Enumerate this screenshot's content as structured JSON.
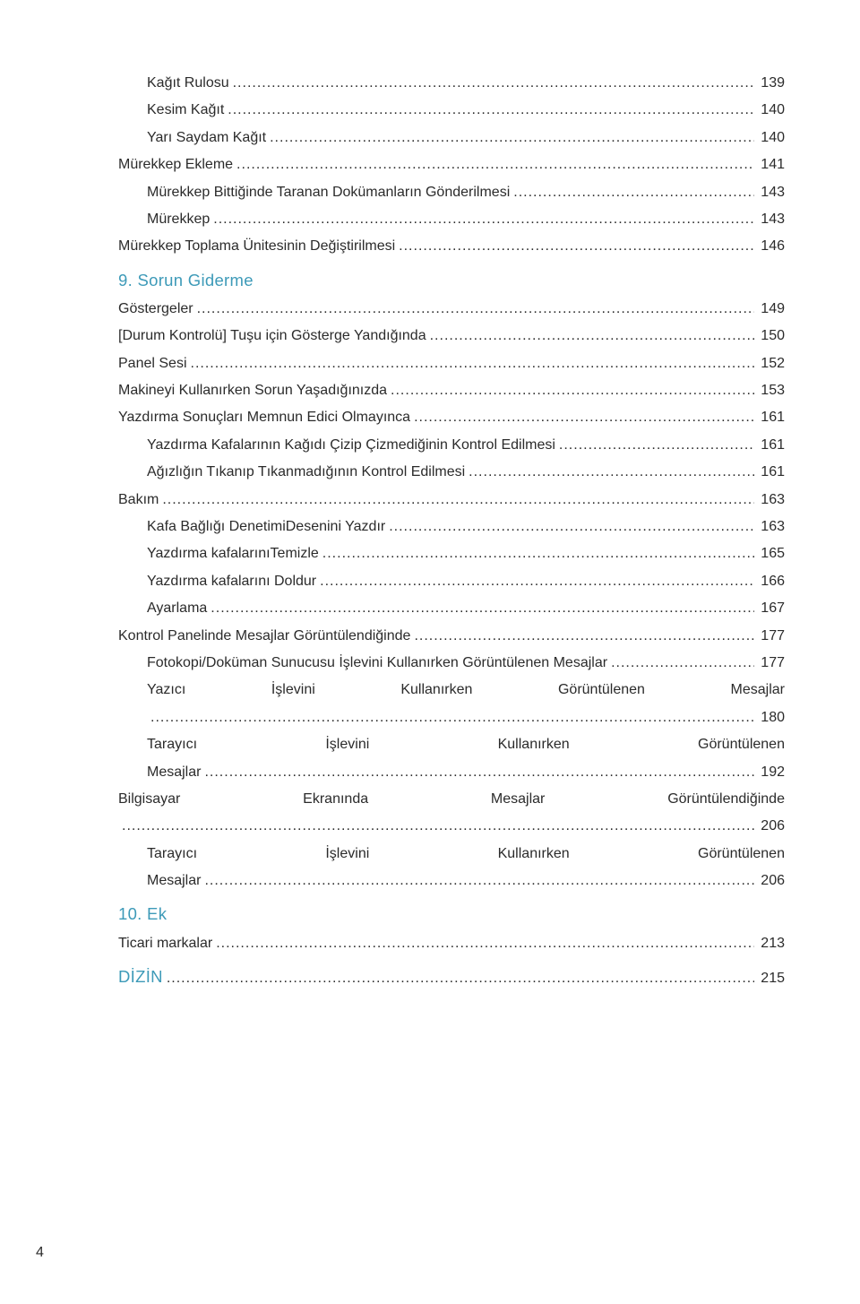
{
  "colors": {
    "text": "#2b2b2b",
    "heading": "#3d9ab8",
    "background": "#ffffff"
  },
  "typography": {
    "body_fontsize_pt": 12,
    "heading_fontsize_pt": 14,
    "font_family": "Segoe UI Light / Futura Light",
    "font_weight": "300"
  },
  "page_number": "4",
  "entries": [
    {
      "kind": "item",
      "indent": 2,
      "label": "Kağıt Rulosu",
      "page": "139"
    },
    {
      "kind": "item",
      "indent": 2,
      "label": "Kesim Kağıt",
      "page": "140"
    },
    {
      "kind": "item",
      "indent": 2,
      "label": "Yarı Saydam Kağıt",
      "page": "140"
    },
    {
      "kind": "item",
      "indent": 1,
      "label": "Mürekkep Ekleme",
      "page": "141"
    },
    {
      "kind": "item",
      "indent": 2,
      "label": "Mürekkep Bittiğinde Taranan Dokümanların Gönderilmesi",
      "page": "143"
    },
    {
      "kind": "item",
      "indent": 2,
      "label": "Mürekkep",
      "page": "143"
    },
    {
      "kind": "item",
      "indent": 1,
      "label": "Mürekkep Toplama Ünitesinin Değiştirilmesi",
      "page": "146"
    },
    {
      "kind": "heading_only",
      "label": "9. Sorun Giderme"
    },
    {
      "kind": "item",
      "indent": 1,
      "label": "Göstergeler",
      "page": "149"
    },
    {
      "kind": "item",
      "indent": 1,
      "label": "[Durum Kontrolü] Tuşu için Gösterge Yandığında",
      "page": "150"
    },
    {
      "kind": "item",
      "indent": 1,
      "label": "Panel Sesi",
      "page": "152"
    },
    {
      "kind": "item",
      "indent": 1,
      "label": "Makineyi Kullanırken Sorun Yaşadığınızda",
      "page": "153"
    },
    {
      "kind": "item",
      "indent": 1,
      "label": "Yazdırma Sonuçları Memnun Edici Olmayınca",
      "page": "161"
    },
    {
      "kind": "item",
      "indent": 2,
      "label": "Yazdırma Kafalarının Kağıdı Çizip Çizmediğinin Kontrol Edilmesi",
      "page": "161"
    },
    {
      "kind": "item",
      "indent": 2,
      "label": "Ağızlığın Tıkanıp Tıkanmadığının Kontrol Edilmesi",
      "page": "161"
    },
    {
      "kind": "item",
      "indent": 1,
      "label": "Bakım",
      "page": "163"
    },
    {
      "kind": "item",
      "indent": 2,
      "label": "Kafa Bağlığı DenetimiDesenini Yazdır",
      "page": "163"
    },
    {
      "kind": "item",
      "indent": 2,
      "label": "Yazdırma kafalarınıTemizle",
      "page": "165"
    },
    {
      "kind": "item",
      "indent": 2,
      "label": "Yazdırma kafalarını Doldur",
      "page": "166"
    },
    {
      "kind": "item",
      "indent": 2,
      "label": "Ayarlama",
      "page": "167"
    },
    {
      "kind": "item",
      "indent": 1,
      "label": "Kontrol Panelinde Mesajlar Görüntülendiğinde",
      "page": "177"
    },
    {
      "kind": "item",
      "indent": 2,
      "label": "Fotokopi/Doküman Sunucusu İşlevini Kullanırken Görüntülenen Mesajlar",
      "page": "177"
    },
    {
      "kind": "justified",
      "indent": 2,
      "words": [
        "Yazıcı",
        "İşlevini",
        "Kullanırken",
        "Görüntülenen",
        "Mesajlar"
      ]
    },
    {
      "kind": "leader_only",
      "indent": 2,
      "page": "180"
    },
    {
      "kind": "justified",
      "indent": 2,
      "words": [
        "Tarayıcı",
        "İşlevini",
        "Kullanırken",
        "Görüntülenen"
      ]
    },
    {
      "kind": "item",
      "indent": 2,
      "label": "Mesajlar",
      "page": "192"
    },
    {
      "kind": "justified",
      "indent": 1,
      "words": [
        "Bilgisayar",
        "Ekranında",
        "Mesajlar",
        "Görüntülendiğinde"
      ]
    },
    {
      "kind": "leader_only",
      "indent": 1,
      "page": "206"
    },
    {
      "kind": "justified",
      "indent": 2,
      "words": [
        "Tarayıcı",
        "İşlevini",
        "Kullanırken",
        "Görüntülenen"
      ]
    },
    {
      "kind": "item",
      "indent": 2,
      "label": "Mesajlar",
      "page": "206"
    },
    {
      "kind": "heading_only",
      "label": "10. Ek"
    },
    {
      "kind": "item",
      "indent": 1,
      "label": "Ticari markalar",
      "page": "213"
    },
    {
      "kind": "heading_leader",
      "label": "DİZİN",
      "page": "215"
    }
  ]
}
